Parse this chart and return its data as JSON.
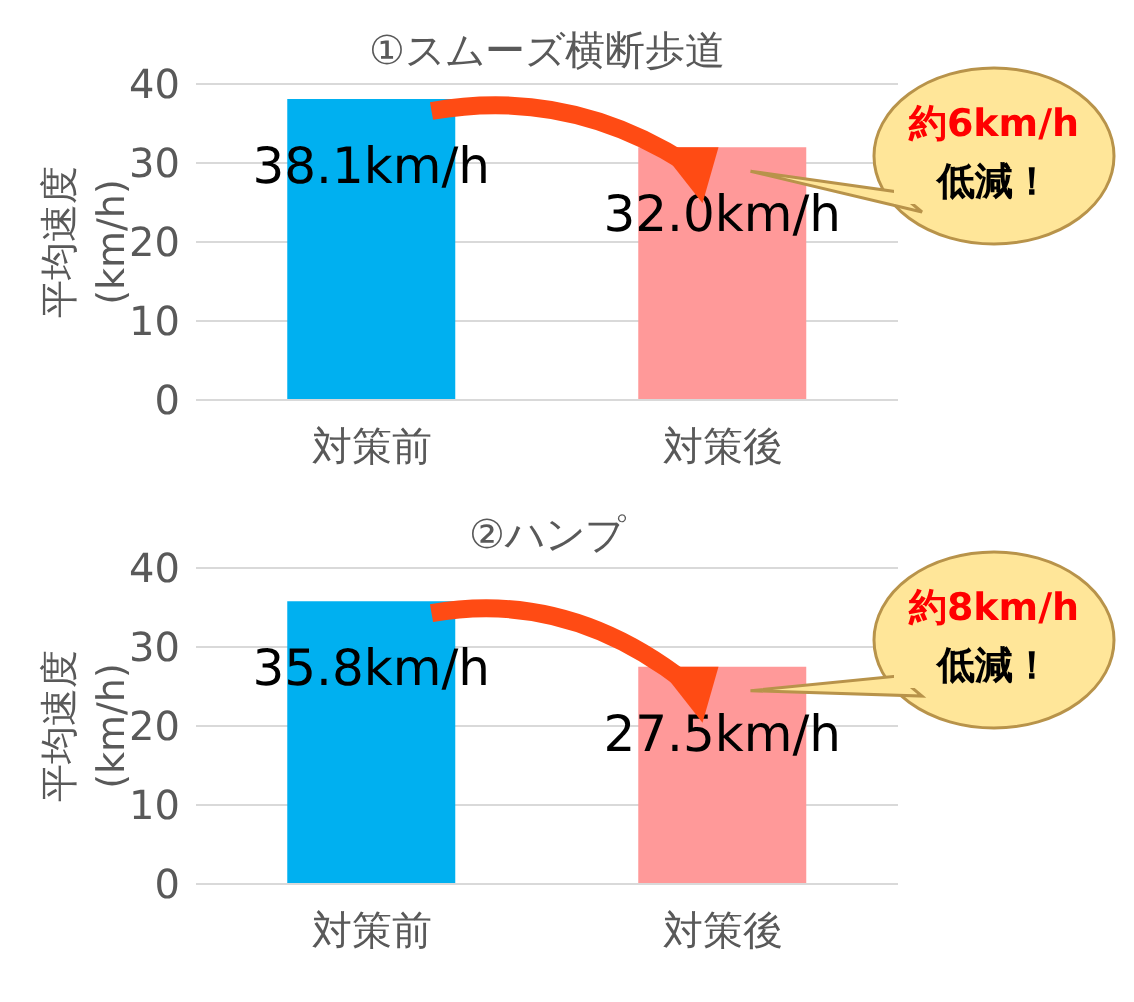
{
  "chart_data": [
    {
      "type": "bar",
      "title": "①スムーズ横断歩道",
      "ylabel": "平均速度\n(km/h)",
      "categories": [
        "対策前",
        "対策後"
      ],
      "values": [
        38.1,
        32.0
      ],
      "colors": [
        "#00b0f0",
        "#ff9999"
      ],
      "value_labels": [
        "38.1km/h",
        "32.0km/h"
      ],
      "ylim": [
        0,
        40
      ],
      "yticks": [
        0,
        10,
        20,
        30,
        40
      ],
      "grid": "y",
      "annotations": [
        "約6km/h\n低減！"
      ]
    },
    {
      "type": "bar",
      "title": "②ハンプ",
      "ylabel": "平均速度\n(km/h)",
      "categories": [
        "対策前",
        "対策後"
      ],
      "values": [
        35.8,
        27.5
      ],
      "colors": [
        "#00b0f0",
        "#ff9999"
      ],
      "value_labels": [
        "35.8km/h",
        "27.5km/h"
      ],
      "ylim": [
        0,
        40
      ],
      "yticks": [
        0,
        10,
        20,
        30,
        40
      ],
      "grid": "y",
      "annotations": [
        "約8km/h\n低減！"
      ]
    }
  ]
}
